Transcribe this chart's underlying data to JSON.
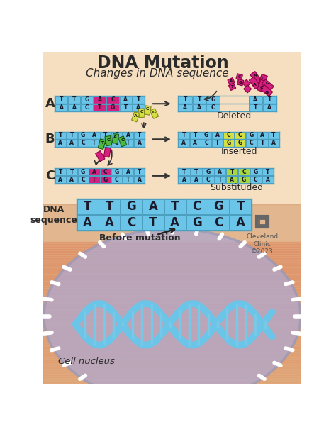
{
  "title": "DNA Mutation",
  "subtitle": "Changes in DNA sequence",
  "bg_color": "#f5dfc0",
  "bg_bottom": "#e8a870",
  "dna_blue": "#6bc5e8",
  "dna_blue_dark": "#5ab0d8",
  "dna_border": "#4a9fc0",
  "magenta": "#d42080",
  "yellow_green": "#d4e040",
  "green": "#50b840",
  "text_dark": "#2a2a2a",
  "deleted_label": "Deleted",
  "inserted_label": "Inserted",
  "substituted_label": "Substituded",
  "before_mutation": "Before mutation",
  "cell_nucleus": "Cell nucleus",
  "dna_sequence": "DNA\nsequence",
  "cleveland": "Cleveland\nClinic\n©2023"
}
